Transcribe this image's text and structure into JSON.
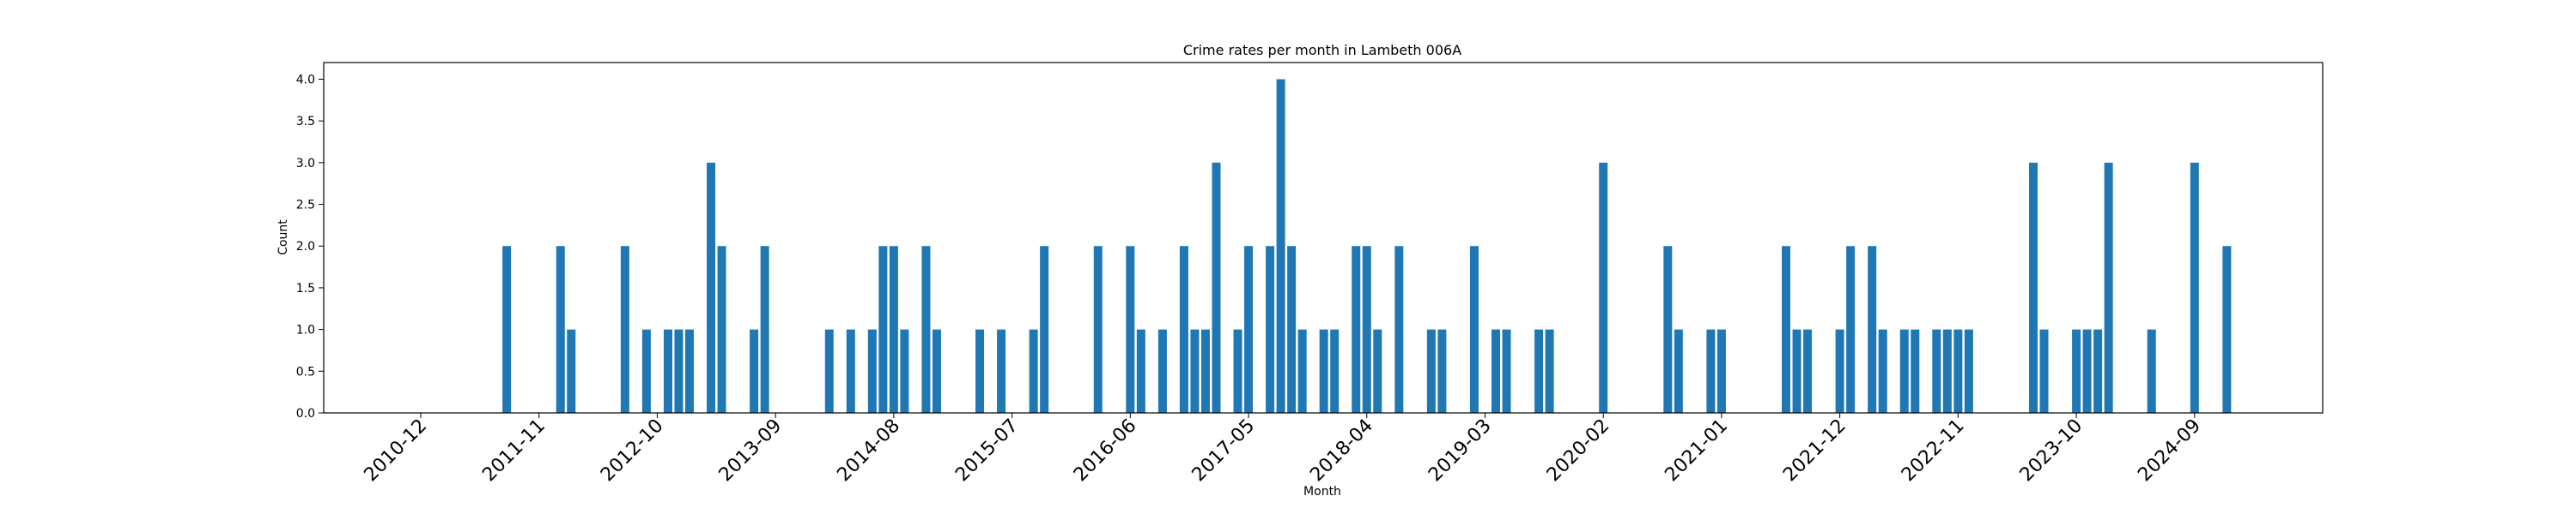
{
  "chart_data": {
    "type": "bar",
    "title": "Crime rates per month in Lambeth 006A",
    "xlabel": "Month",
    "ylabel": "Count",
    "ylim": [
      0,
      4.2
    ],
    "y_ticks": [
      "0.0",
      "0.5",
      "1.0",
      "1.5",
      "2.0",
      "2.5",
      "3.0",
      "3.5",
      "4.0"
    ],
    "x_tick_labels": [
      "2010-12",
      "2011-11",
      "2012-10",
      "2013-09",
      "2014-08",
      "2015-07",
      "2016-06",
      "2017-05",
      "2018-04",
      "2019-03",
      "2020-02",
      "2021-01",
      "2021-12",
      "2022-11",
      "2023-10",
      "2024-09"
    ],
    "bar_color": "#1f77b4",
    "grid": false,
    "points": [
      [
        "2011-08",
        2
      ],
      [
        "2012-01",
        2
      ],
      [
        "2012-02",
        1
      ],
      [
        "2012-07",
        2
      ],
      [
        "2012-09",
        1
      ],
      [
        "2012-11",
        1
      ],
      [
        "2012-12",
        1
      ],
      [
        "2013-01",
        1
      ],
      [
        "2013-03",
        3
      ],
      [
        "2013-04",
        2
      ],
      [
        "2013-07",
        1
      ],
      [
        "2013-08",
        2
      ],
      [
        "2014-02",
        1
      ],
      [
        "2014-04",
        1
      ],
      [
        "2014-06",
        1
      ],
      [
        "2014-07",
        2
      ],
      [
        "2014-08",
        2
      ],
      [
        "2014-09",
        1
      ],
      [
        "2014-11",
        2
      ],
      [
        "2014-12",
        1
      ],
      [
        "2015-04",
        1
      ],
      [
        "2015-06",
        1
      ],
      [
        "2015-09",
        1
      ],
      [
        "2015-10",
        2
      ],
      [
        "2016-03",
        2
      ],
      [
        "2016-06",
        2
      ],
      [
        "2016-07",
        1
      ],
      [
        "2016-09",
        1
      ],
      [
        "2016-11",
        2
      ],
      [
        "2016-12",
        1
      ],
      [
        "2017-01",
        1
      ],
      [
        "2017-02",
        3
      ],
      [
        "2017-04",
        1
      ],
      [
        "2017-05",
        2
      ],
      [
        "2017-07",
        2
      ],
      [
        "2017-08",
        4
      ],
      [
        "2017-09",
        2
      ],
      [
        "2017-10",
        1
      ],
      [
        "2017-12",
        1
      ],
      [
        "2018-01",
        1
      ],
      [
        "2018-03",
        2
      ],
      [
        "2018-04",
        2
      ],
      [
        "2018-05",
        1
      ],
      [
        "2018-07",
        2
      ],
      [
        "2018-10",
        1
      ],
      [
        "2018-11",
        1
      ],
      [
        "2019-02",
        2
      ],
      [
        "2019-04",
        1
      ],
      [
        "2019-05",
        1
      ],
      [
        "2019-08",
        1
      ],
      [
        "2019-09",
        1
      ],
      [
        "2020-02",
        3
      ],
      [
        "2020-08",
        2
      ],
      [
        "2020-09",
        1
      ],
      [
        "2020-12",
        1
      ],
      [
        "2021-01",
        1
      ],
      [
        "2021-07",
        2
      ],
      [
        "2021-08",
        1
      ],
      [
        "2021-09",
        1
      ],
      [
        "2021-12",
        1
      ],
      [
        "2022-01",
        2
      ],
      [
        "2022-03",
        2
      ],
      [
        "2022-04",
        1
      ],
      [
        "2022-06",
        1
      ],
      [
        "2022-07",
        1
      ],
      [
        "2022-09",
        1
      ],
      [
        "2022-10",
        1
      ],
      [
        "2022-11",
        1
      ],
      [
        "2022-12",
        1
      ],
      [
        "2023-06",
        3
      ],
      [
        "2023-07",
        1
      ],
      [
        "2023-10",
        1
      ],
      [
        "2023-11",
        1
      ],
      [
        "2023-12",
        1
      ],
      [
        "2024-01",
        3
      ],
      [
        "2024-05",
        1
      ],
      [
        "2024-09",
        3
      ],
      [
        "2024-12",
        2
      ]
    ]
  }
}
